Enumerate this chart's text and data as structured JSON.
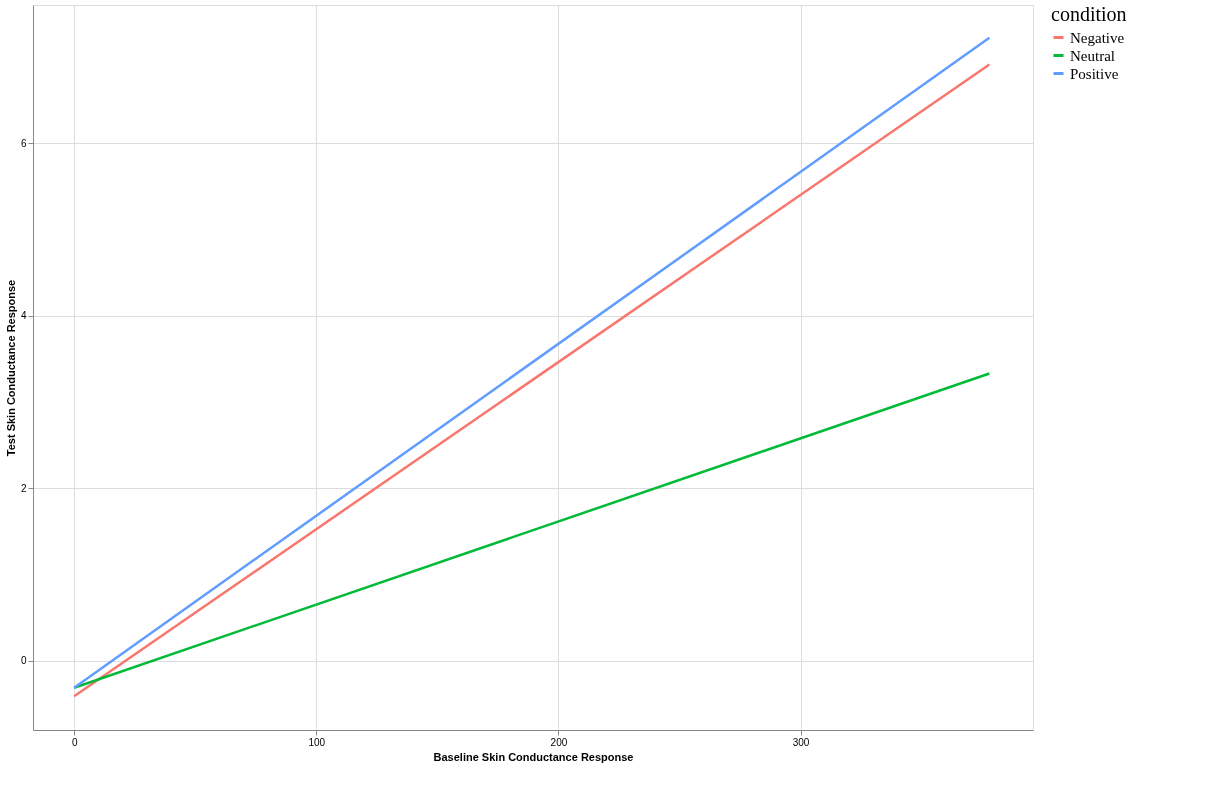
{
  "chart_data": {
    "type": "line",
    "xlabel": "Baseline Skin Conductance Response",
    "ylabel": "Test Skin Conductance Response",
    "legend_title": "condition",
    "x": [
      0,
      378
    ],
    "series": [
      {
        "name": "Negative",
        "color": "#f8766d",
        "values": [
          -0.41,
          6.91
        ]
      },
      {
        "name": "Neutral",
        "color": "#00ba38",
        "values": [
          -0.31,
          3.33
        ]
      },
      {
        "name": "Positive",
        "color": "#619cff",
        "values": [
          -0.31,
          7.22
        ]
      }
    ],
    "xlim": [
      -17,
      396
    ],
    "xticks": [
      0,
      100,
      200,
      300
    ],
    "ylim": [
      -0.8,
      7.6
    ],
    "yticks": [
      0,
      2,
      4,
      6
    ],
    "grid": true,
    "legend": "right",
    "marker": "none",
    "line_style": "solid"
  }
}
